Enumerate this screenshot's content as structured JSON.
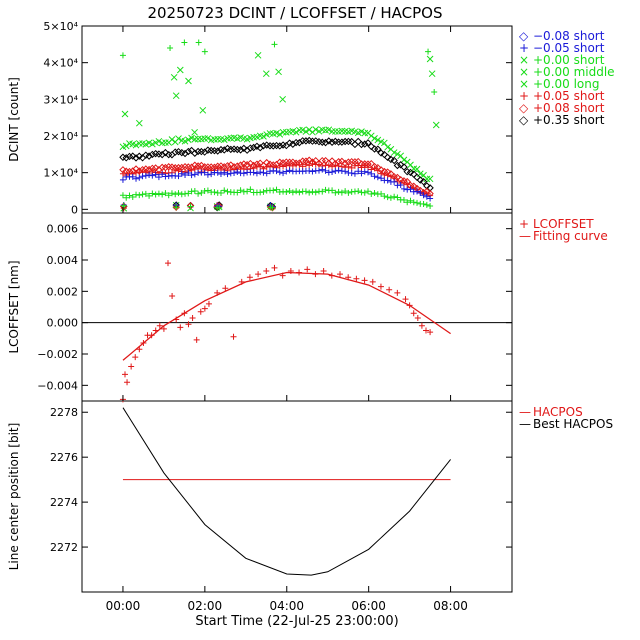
{
  "title": "20250723 DCINT / LCOFFSET / HACPOS",
  "chart_data": [
    {
      "panel": "dcint",
      "type": "scatter",
      "ylabel": "DCINT [count]",
      "ylim": [
        -1000,
        50000
      ],
      "xlim": [
        -1,
        9.5
      ],
      "yticks": [
        {
          "v": 0,
          "label": "0"
        },
        {
          "v": 10000,
          "label": "1×10⁴"
        },
        {
          "v": 20000,
          "label": "2×10⁴"
        },
        {
          "v": 30000,
          "label": "3×10⁴"
        },
        {
          "v": 40000,
          "label": "4×10⁴"
        },
        {
          "v": 50000,
          "label": "5×10⁴"
        }
      ],
      "legend": [
        {
          "marker": "◇",
          "label": "−0.08 short",
          "color": "#1a1ad8"
        },
        {
          "marker": "+",
          "label": "−0.05 short",
          "color": "#1a1ad8"
        },
        {
          "marker": "×",
          "label": "+0.00 short",
          "color": "#18dc18"
        },
        {
          "marker": "×",
          "label": "+0.00 middle",
          "color": "#18dc18"
        },
        {
          "marker": "×",
          "label": "+0.00 long",
          "color": "#18dc18"
        },
        {
          "marker": "+",
          "label": "+0.05 short",
          "color": "#e01818"
        },
        {
          "marker": "◇",
          "label": "+0.08 short",
          "color": "#e01818"
        },
        {
          "marker": "◇",
          "label": "+0.35 short",
          "color": "#000000"
        }
      ],
      "series": [
        {
          "name": "+0.00 long",
          "color": "#18dc18",
          "marker": "x",
          "t0": 0,
          "t1": 7.5,
          "y": [
            17500,
            19000,
            19500,
            21500,
            21000,
            8000
          ]
        },
        {
          "name": "+0.35 short",
          "color": "#000000",
          "marker": "d",
          "t0": 0,
          "t1": 7.5,
          "y": [
            14000,
            15500,
            16500,
            18500,
            18000,
            6000
          ]
        },
        {
          "name": "+0.08 short",
          "color": "#e01818",
          "marker": "d",
          "t0": 0,
          "t1": 7.5,
          "y": [
            10500,
            11500,
            12000,
            13000,
            12500,
            4000
          ]
        },
        {
          "name": "+0.05 short",
          "color": "#e01818",
          "marker": "+",
          "t0": 0,
          "t1": 7.5,
          "y": [
            9500,
            10500,
            11000,
            12000,
            11500,
            3500
          ]
        },
        {
          "name": "−0.05 short",
          "color": "#1a1ad8",
          "marker": "+",
          "t0": 0,
          "t1": 7.5,
          "y": [
            8500,
            9500,
            10000,
            10500,
            10000,
            3000
          ]
        },
        {
          "name": "+0.00 short",
          "color": "#18dc18",
          "marker": "+",
          "t0": 0,
          "t1": 7.5,
          "y": [
            3500,
            4500,
            5000,
            5000,
            4500,
            1000
          ]
        }
      ],
      "outliers": [
        [
          0,
          42000
        ],
        [
          0.05,
          26000
        ],
        [
          0.4,
          23500
        ],
        [
          1.15,
          44000
        ],
        [
          1.25,
          36000
        ],
        [
          1.4,
          38000
        ],
        [
          1.5,
          45500
        ],
        [
          1.3,
          31000
        ],
        [
          1.6,
          35000
        ],
        [
          1.85,
          45500
        ],
        [
          1.95,
          27000
        ],
        [
          1.75,
          21000
        ],
        [
          2.0,
          43000
        ],
        [
          3.3,
          42000
        ],
        [
          3.5,
          37000
        ],
        [
          3.7,
          45000
        ],
        [
          3.8,
          37500
        ],
        [
          3.9,
          30000
        ],
        [
          7.45,
          43000
        ],
        [
          7.5,
          41000
        ],
        [
          7.55,
          37000
        ],
        [
          7.6,
          32000
        ],
        [
          7.65,
          23000
        ]
      ]
    },
    {
      "panel": "lcoffset",
      "type": "scatter",
      "ylabel": "LCOFFSET [nm]",
      "ylim": [
        -0.005,
        0.007
      ],
      "xlim": [
        -1,
        9.5
      ],
      "yticks": [
        {
          "v": -0.004,
          "label": "−0.004"
        },
        {
          "v": -0.002,
          "label": "−0.002"
        },
        {
          "v": 0.0,
          "label": "0.000"
        },
        {
          "v": 0.002,
          "label": "0.002"
        },
        {
          "v": 0.004,
          "label": "0.004"
        },
        {
          "v": 0.006,
          "label": "0.006"
        }
      ],
      "legend": [
        {
          "marker": "+",
          "label": "LCOFFSET",
          "color": "#e01818"
        },
        {
          "marker": "—",
          "label": "Fitting curve",
          "color": "#e01818"
        }
      ],
      "fit_curve": {
        "color": "#e01818",
        "points": [
          [
            0,
            -0.0024
          ],
          [
            1,
            -0.0002
          ],
          [
            2,
            0.0014
          ],
          [
            3,
            0.0026
          ],
          [
            4,
            0.0032
          ],
          [
            5,
            0.0031
          ],
          [
            6,
            0.0024
          ],
          [
            7,
            0.0011
          ],
          [
            8,
            -0.0007
          ]
        ]
      },
      "points": [
        [
          0,
          -0.0049
        ],
        [
          0.05,
          -0.0033
        ],
        [
          0.1,
          -0.0038
        ],
        [
          0.2,
          -0.0028
        ],
        [
          0.3,
          -0.0022
        ],
        [
          0.4,
          -0.0017
        ],
        [
          0.5,
          -0.0013
        ],
        [
          0.6,
          -0.0008
        ],
        [
          0.7,
          -0.0008
        ],
        [
          0.8,
          -0.0005
        ],
        [
          0.9,
          -0.0002
        ],
        [
          1.0,
          -0.0004
        ],
        [
          1.1,
          0.0038
        ],
        [
          1.2,
          0.0017
        ],
        [
          1.3,
          0.0002
        ],
        [
          1.4,
          -0.0003
        ],
        [
          1.5,
          0.0006
        ],
        [
          1.6,
          -0.0001
        ],
        [
          1.7,
          0.0003
        ],
        [
          1.8,
          -0.0011
        ],
        [
          1.9,
          0.0007
        ],
        [
          2.0,
          0.0009
        ],
        [
          2.1,
          0.0012
        ],
        [
          2.3,
          0.0019
        ],
        [
          2.5,
          0.0022
        ],
        [
          2.7,
          -0.0009
        ],
        [
          2.9,
          0.0026
        ],
        [
          3.1,
          0.0029
        ],
        [
          3.3,
          0.0031
        ],
        [
          3.5,
          0.0033
        ],
        [
          3.7,
          0.0035
        ],
        [
          3.9,
          0.003
        ],
        [
          4.1,
          0.0033
        ],
        [
          4.3,
          0.0032
        ],
        [
          4.5,
          0.0034
        ],
        [
          4.7,
          0.0031
        ],
        [
          4.9,
          0.0033
        ],
        [
          5.1,
          0.003
        ],
        [
          5.3,
          0.0031
        ],
        [
          5.5,
          0.0029
        ],
        [
          5.7,
          0.0028
        ],
        [
          5.9,
          0.0027
        ],
        [
          6.1,
          0.0026
        ],
        [
          6.3,
          0.0023
        ],
        [
          6.5,
          0.0021
        ],
        [
          6.7,
          0.0019
        ],
        [
          6.9,
          0.0015
        ],
        [
          7.0,
          0.0011
        ],
        [
          7.1,
          0.0006
        ],
        [
          7.2,
          0.0003
        ],
        [
          7.3,
          -0.0002
        ],
        [
          7.4,
          -0.0005
        ],
        [
          7.5,
          -0.0006
        ]
      ]
    },
    {
      "panel": "hacpos",
      "type": "line",
      "ylabel": "Line center position [bit]",
      "xlabel": "Start Time (22-Jul-25 23:00:00)",
      "ylim": [
        2270,
        2278.5
      ],
      "xlim": [
        -1,
        9.5
      ],
      "yticks": [
        {
          "v": 2272,
          "label": "2272"
        },
        {
          "v": 2274,
          "label": "2274"
        },
        {
          "v": 2276,
          "label": "2276"
        },
        {
          "v": 2278,
          "label": "2278"
        }
      ],
      "xticks": [
        {
          "v": 0,
          "label": "00:00"
        },
        {
          "v": 2,
          "label": "02:00"
        },
        {
          "v": 4,
          "label": "04:00"
        },
        {
          "v": 6,
          "label": "06:00"
        },
        {
          "v": 8,
          "label": "08:00"
        }
      ],
      "legend": [
        {
          "marker": "—",
          "label": "HACPOS",
          "color": "#e01818"
        },
        {
          "marker": "—",
          "label": "Best HACPOS",
          "color": "#000000"
        }
      ],
      "hacpos": {
        "value": 2275,
        "x": [
          0,
          8
        ],
        "color": "#e01818"
      },
      "best_hacpos": {
        "color": "#000000",
        "points": [
          [
            0,
            2278.2
          ],
          [
            1,
            2275.3
          ],
          [
            2,
            2273.0
          ],
          [
            3,
            2271.5
          ],
          [
            4,
            2270.8
          ],
          [
            4.6,
            2270.75
          ],
          [
            5,
            2270.9
          ],
          [
            6,
            2271.9
          ],
          [
            7,
            2273.6
          ],
          [
            8,
            2275.9
          ]
        ]
      }
    }
  ]
}
